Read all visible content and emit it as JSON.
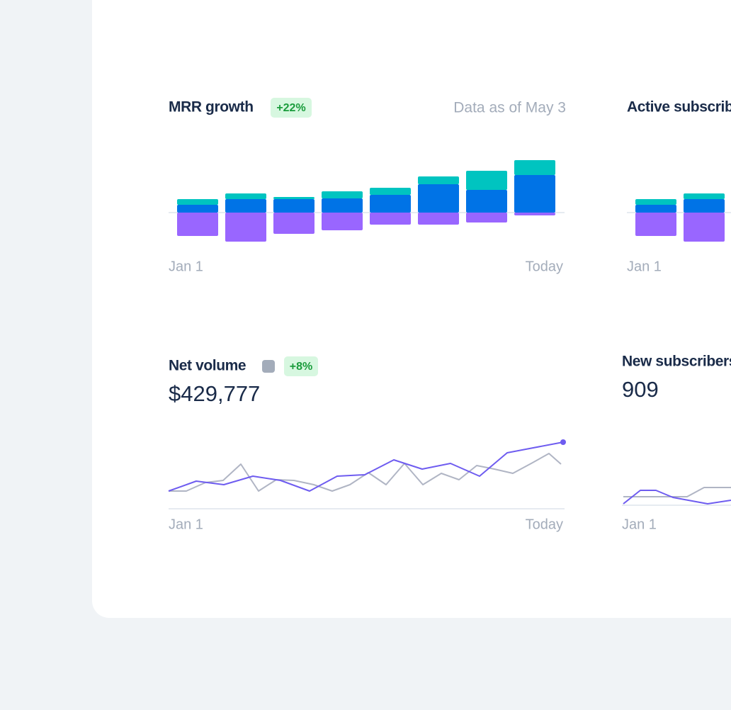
{
  "chart_data": [
    {
      "type": "bar",
      "title": "MRR growth",
      "badge": "+22%",
      "note": "Data as of May 3",
      "xlabels": [
        "Jan 1",
        "Today"
      ],
      "ylim": [
        -50,
        80
      ],
      "stacked": true,
      "series": [
        {
          "name": null,
          "color": "#9966ff",
          "values": [
            -33,
            -41,
            -30,
            -25,
            -17,
            -17,
            -14,
            -4
          ]
        },
        {
          "name": null,
          "color": "#0073e6",
          "values": [
            11,
            19,
            19,
            20,
            25,
            40,
            32,
            53
          ]
        },
        {
          "name": null,
          "color": "#00c4c0",
          "values": [
            8,
            8,
            3,
            10,
            10,
            11,
            27,
            21
          ]
        }
      ]
    },
    {
      "type": "bar",
      "title": "Active subscribers",
      "xlabels": [
        "Jan 1"
      ],
      "ylim": [
        -50,
        80
      ],
      "stacked": true,
      "series": [
        {
          "name": null,
          "color": "#9966ff",
          "values": [
            -33,
            -41
          ]
        },
        {
          "name": null,
          "color": "#0073e6",
          "values": [
            11,
            19
          ]
        },
        {
          "name": null,
          "color": "#00c4c0",
          "values": [
            8,
            8
          ]
        }
      ]
    },
    {
      "type": "line",
      "title": "Net volume",
      "badge": "+8%",
      "value": "$429,777",
      "xlabels": [
        "Jan 1",
        "Today"
      ],
      "xlim": [
        0,
        557
      ],
      "ylim": [
        0,
        100
      ],
      "series": [
        {
          "name": null,
          "color": "#b0b5c4",
          "x": [
            0,
            25,
            52,
            77,
            102,
            127,
            152,
            177,
            205,
            231,
            256,
            282,
            307,
            333,
            359,
            385,
            410,
            435,
            460,
            486,
            512,
            537,
            554
          ],
          "values": [
            25,
            25,
            37,
            40,
            63,
            25,
            41,
            40,
            34,
            25,
            34,
            51,
            34,
            64,
            34,
            50,
            41,
            61,
            56,
            50,
            64,
            78,
            63
          ]
        },
        {
          "name": null,
          "color": "#6e5cf0",
          "x": [
            0,
            39,
            78,
            119,
            158,
            199,
            238,
            277,
            318,
            358,
            398,
            439,
            478,
            557
          ],
          "values": [
            25,
            39,
            34,
            46,
            40,
            25,
            46,
            48,
            69,
            56,
            64,
            46,
            79,
            94
          ],
          "end_dot": true
        }
      ]
    },
    {
      "type": "line",
      "title": "New subscribers",
      "value": "909",
      "xlabels": [
        "Jan 1"
      ],
      "xlim": [
        0,
        557
      ],
      "ylim": [
        0,
        100
      ],
      "series": [
        {
          "name": null,
          "color": "#b0b5c4",
          "x": [
            0,
            90,
            114,
            152
          ],
          "values": [
            12,
            12,
            25,
            25
          ]
        },
        {
          "name": null,
          "color": "#6e5cf0",
          "x": [
            0,
            24,
            46,
            70,
            119,
            152
          ],
          "values": [
            2,
            21,
            21,
            11,
            2,
            7
          ]
        }
      ]
    }
  ]
}
